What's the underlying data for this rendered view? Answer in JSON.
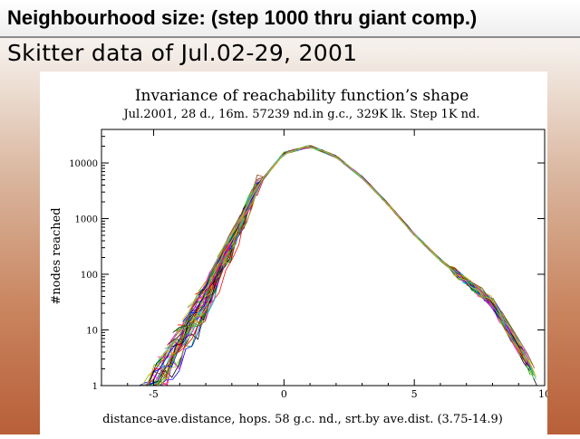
{
  "slide": {
    "title": "Neighbourhood size: (step 1000 thru giant comp.)",
    "subtitle": "Skitter data of Jul.02-29, 2001"
  },
  "colors": {
    "accent": "#b85f38",
    "series_palette": [
      "#000000",
      "#ff0000",
      "#00aa00",
      "#0000ff",
      "#ff00ff",
      "#00cccc",
      "#ffa500",
      "#8b4513",
      "#888888",
      "#9acd32",
      "#800080",
      "#a0a000"
    ]
  },
  "chart_data": {
    "type": "line",
    "title": "Invariance of reachability function’s shape",
    "subtitle": "Jul.2001, 28 d., 16m. 57239 nd.in g.c., 329K lk. Step 1K nd.",
    "xlabel": "distance-ave.distance, hops. 58 g.c. nd., srt.by ave.dist. (3.75-14.9)",
    "ylabel": "#nodes reached",
    "xlim": [
      -7,
      10
    ],
    "ylim": [
      1,
      40000
    ],
    "yscale": "log",
    "grid": false,
    "x_ticks": [
      "-5",
      "0",
      "5",
      "10"
    ],
    "y_ticks": [
      "1",
      "10",
      "100",
      "1000",
      "10000"
    ],
    "series_count": 58,
    "central_curve": {
      "x": [
        -5,
        -4,
        -3,
        -2,
        -1,
        0,
        1,
        2,
        3,
        4,
        5,
        6,
        7,
        8,
        9
      ],
      "y": [
        2,
        8,
        40,
        400,
        4000,
        15000,
        20000,
        13000,
        5500,
        1800,
        520,
        180,
        75,
        30,
        5
      ]
    }
  }
}
